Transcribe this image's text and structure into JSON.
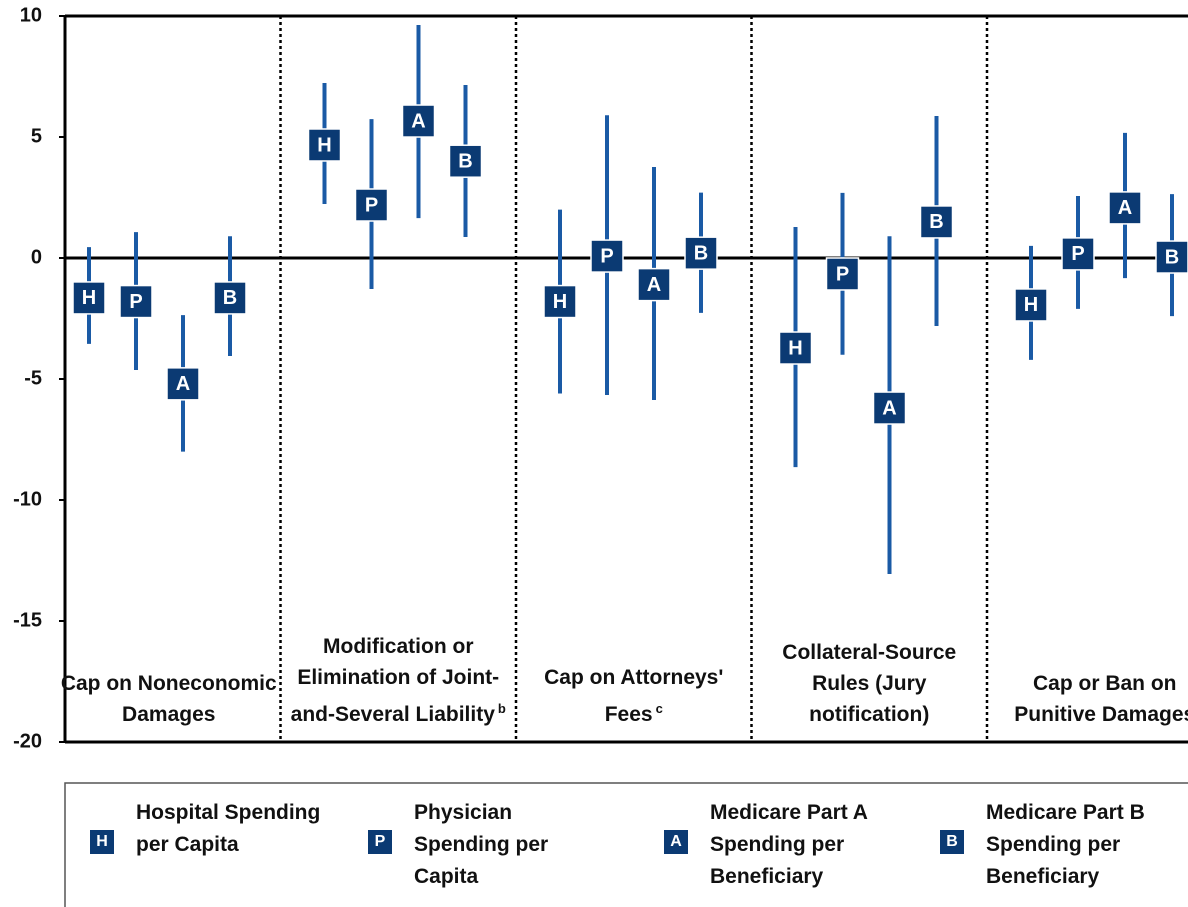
{
  "chart_data": {
    "type": "errorbar",
    "categories": [
      "Cap on Noneconomic Damages",
      "Modification or Elimination of Joint-and-Several Liability",
      "Cap on Attorneys' Fees",
      "Collateral-Source Rules (Jury notification)",
      "Cap or Ban on Punitive Damages"
    ],
    "category_footnotes": [
      null,
      "b",
      "c",
      null,
      null
    ],
    "ylim": [
      -20,
      10
    ],
    "yticks": [
      10,
      5,
      0,
      -5,
      -10,
      -15,
      -20
    ],
    "series": [
      {
        "name": "Hospital Spending per Capita",
        "marker_label": "H",
        "color": "#1a5aa5",
        "values": [
          -1.65,
          4.67,
          -1.8,
          -3.72,
          -1.94
        ],
        "lower": [
          -3.55,
          2.23,
          -5.6,
          -8.64,
          -4.21
        ],
        "upper": [
          0.45,
          7.23,
          2.0,
          1.28,
          0.5
        ]
      },
      {
        "name": "Physician Spending per Capita",
        "marker_label": "P",
        "color": "#1a5aa5",
        "values": [
          -1.8,
          2.19,
          0.08,
          -0.66,
          0.17
        ],
        "lower": [
          -4.63,
          -1.28,
          -5.66,
          -4.0,
          -2.1
        ],
        "upper": [
          1.07,
          5.74,
          5.9,
          2.69,
          2.56
        ]
      },
      {
        "name": "Medicare Part A Spending per Beneficiary",
        "marker_label": "A",
        "color": "#1a5aa5",
        "values": [
          -5.2,
          5.66,
          -1.1,
          -6.2,
          2.07
        ],
        "lower": [
          -8.0,
          1.65,
          -5.87,
          -13.06,
          -0.83
        ],
        "upper": [
          -2.36,
          9.63,
          3.76,
          0.9,
          5.17
        ]
      },
      {
        "name": "Medicare Part B Spending per Beneficiary",
        "marker_label": "B",
        "color": "#1a5aa5",
        "values": [
          -1.65,
          4.0,
          0.2,
          1.49,
          0.04
        ],
        "lower": [
          -4.05,
          0.87,
          -2.27,
          -2.81,
          -2.4
        ],
        "upper": [
          0.9,
          7.15,
          2.7,
          5.87,
          2.64
        ]
      }
    ]
  }
}
